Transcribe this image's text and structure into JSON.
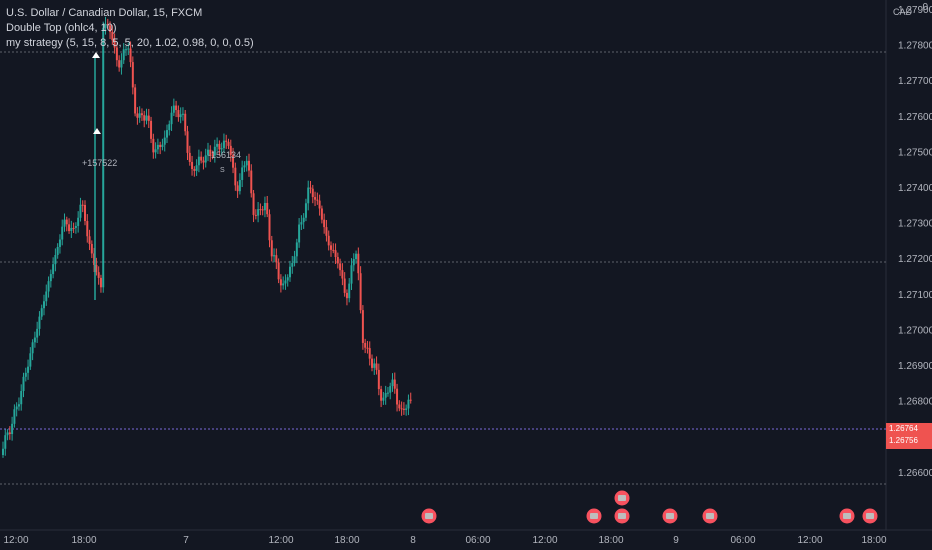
{
  "legend": {
    "symbol": "U.S. Dollar / Canadian Dollar, 15, FXCM",
    "indicator1": "Double Top (ohlc4, 10)",
    "indicator2": "my strategy (5, 15, 8, 5, 5, 20, 1.02, 0.98, 0, 0, 0.5)"
  },
  "currency": "CAD",
  "top_mark": "0",
  "price_axis": [
    "1.27900",
    "1.27800",
    "1.27700",
    "1.27600",
    "1.27500",
    "1.27400",
    "1.27300",
    "1.27200",
    "1.27100",
    "1.27000",
    "1.26900",
    "1.26800",
    "1.26700",
    "1.26600"
  ],
  "time_axis": [
    "12:00",
    "18:00",
    "7",
    "12:00",
    "18:00",
    "8",
    "06:00",
    "12:00",
    "18:00",
    "9",
    "06:00",
    "12:00",
    "18:00"
  ],
  "annotations": {
    "entry_label": "+157522",
    "exit_label": "-156134",
    "small_s": "S"
  },
  "price_tag": {
    "line1": "1.26764",
    "line2": "1.26756"
  },
  "colors": {
    "background": "#131722",
    "up": "#26a69a",
    "down": "#ef5350",
    "grid": "#1e222d",
    "text": "#b2b5be"
  },
  "chart_data": {
    "type": "candlestick",
    "ylim": [
      1.2655,
      1.2795
    ],
    "candles_close_approx": [
      1.2672,
      1.268,
      1.269,
      1.27,
      1.271,
      1.272,
      1.273,
      1.2728,
      1.2735,
      1.2722,
      1.2713,
      1.2785,
      1.2775,
      1.278,
      1.276,
      1.276,
      1.275,
      1.2753,
      1.2762,
      1.276,
      1.2745,
      1.2748,
      1.275,
      1.2752,
      1.2753,
      1.274,
      1.2748,
      1.2732,
      1.2735,
      1.272,
      1.2712,
      1.2718,
      1.273,
      1.274,
      1.2735,
      1.2725,
      1.272,
      1.271,
      1.2722,
      1.2695,
      1.269,
      1.268,
      1.2685,
      1.2677,
      1.268
    ]
  }
}
